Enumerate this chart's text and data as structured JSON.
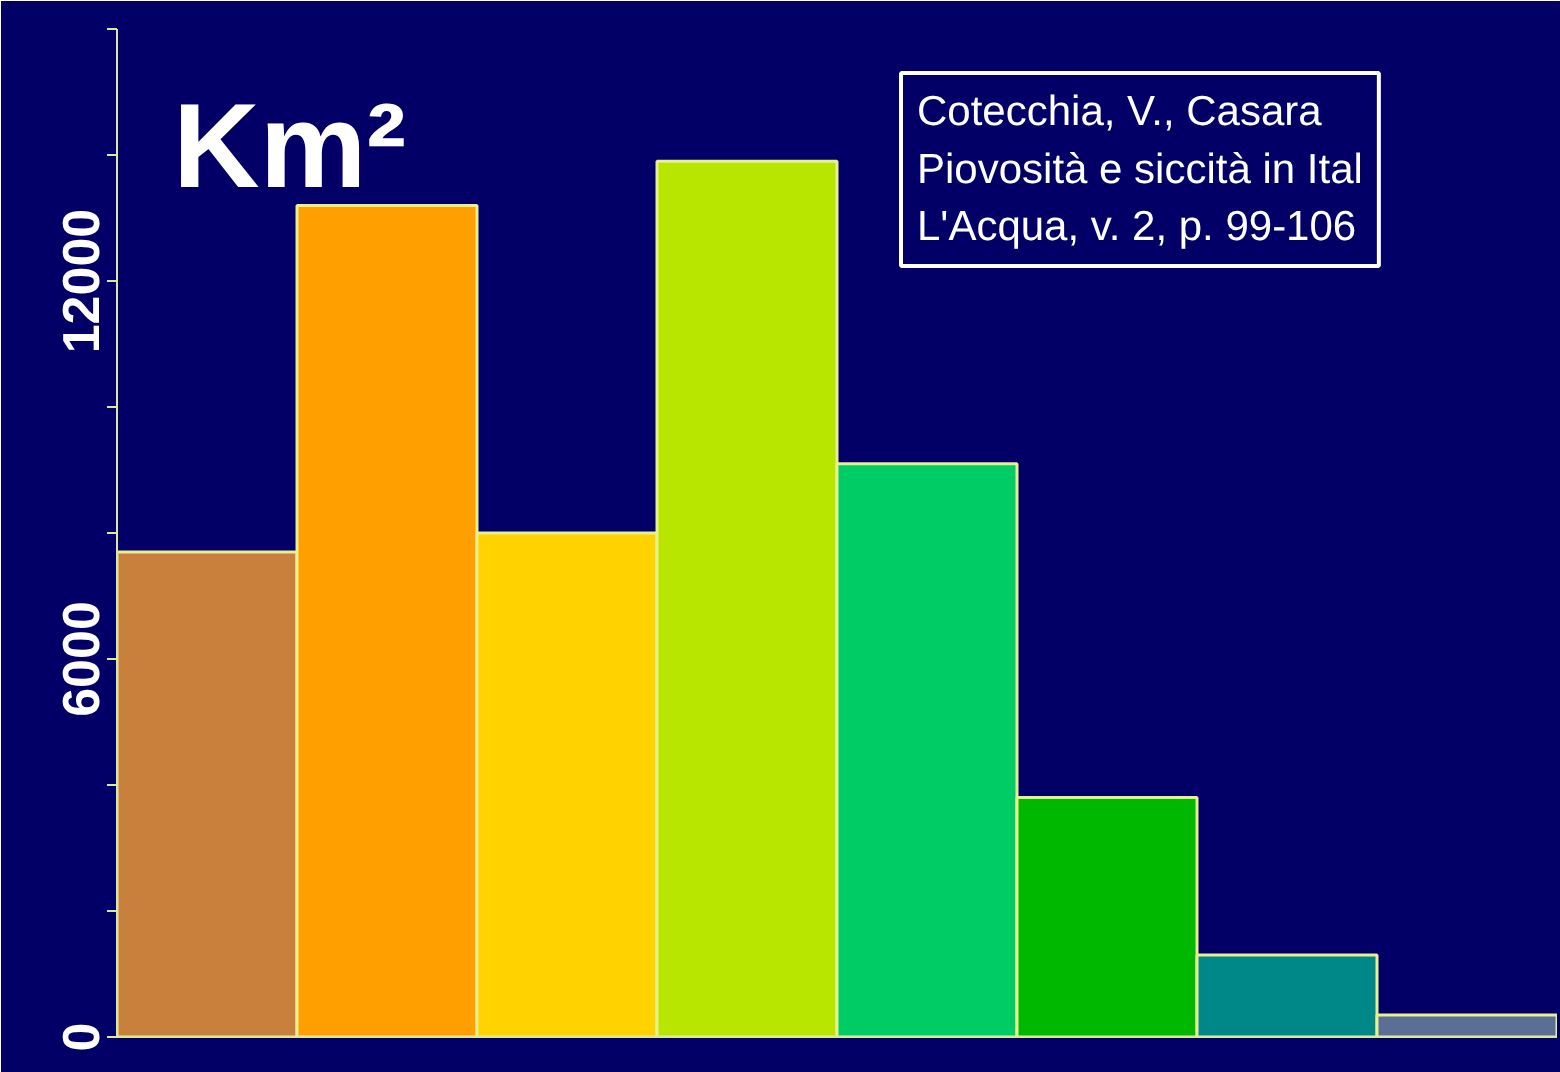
{
  "chart_data": {
    "type": "bar",
    "title": "Km²",
    "categories": [
      null,
      null,
      null,
      null,
      null,
      null,
      null,
      null
    ],
    "values": [
      7700,
      13200,
      8000,
      13900,
      9100,
      3800,
      1300,
      350
    ],
    "colors": [
      "#c8803c",
      "#ffa000",
      "#ffd200",
      "#b8e600",
      "#00cc66",
      "#00b800",
      "#008888",
      "#5a6e96"
    ],
    "ylim": [
      0,
      16000
    ],
    "yticks": [
      0,
      {
        "value": 2000,
        "label": null
      },
      {
        "value": 4000,
        "label": null
      },
      6000,
      {
        "value": 8000,
        "label": null
      },
      {
        "value": 10000,
        "label": null
      },
      12000,
      {
        "value": 14000,
        "label": null
      },
      {
        "value": 16000,
        "label": null
      }
    ],
    "tick_labels": "y",
    "grid": false,
    "annotations": [
      "Cotecchia, V., Casara",
      "Piovosità e siccità in Ital",
      "L'Acqua, v. 2, p. 99-106"
    ]
  }
}
